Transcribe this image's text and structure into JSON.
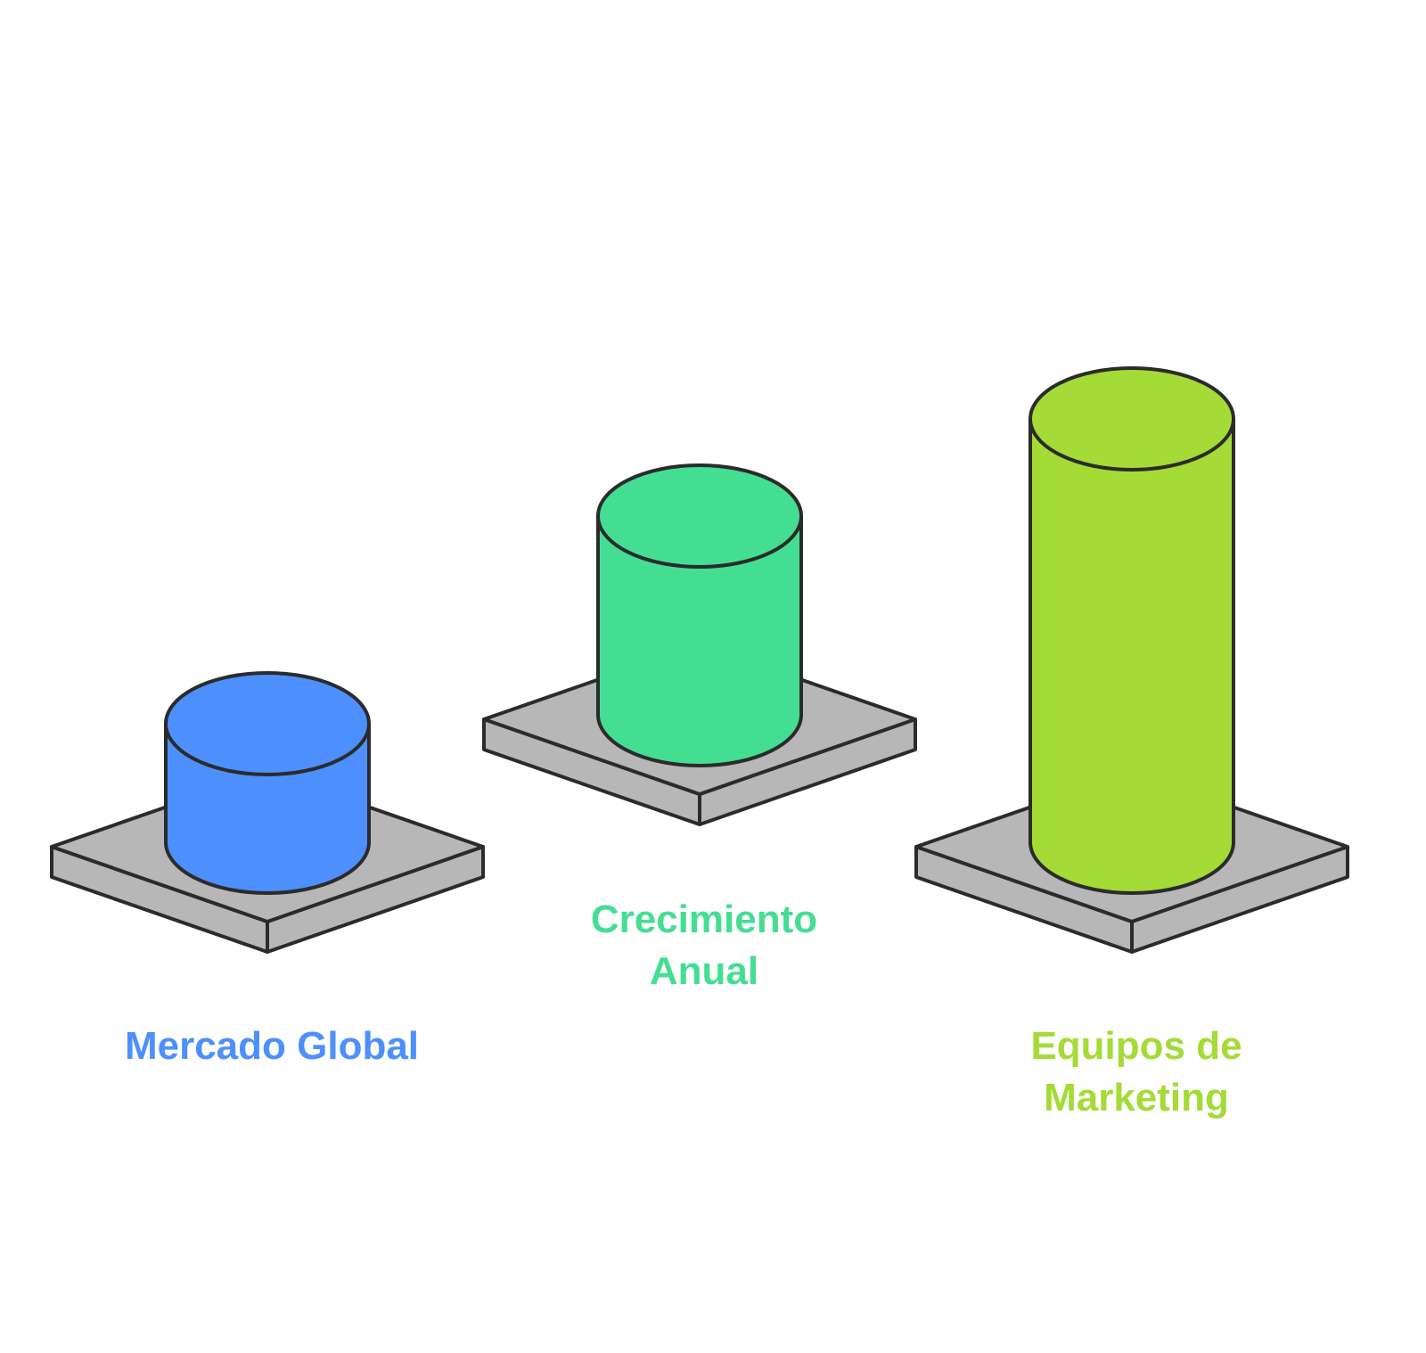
{
  "items": [
    {
      "label_lines": [
        "Mercado Global"
      ],
      "color": "#4d8ffd",
      "label_color": "#4d8ffd"
    },
    {
      "label_lines": [
        "Crecimiento",
        "Anual"
      ],
      "color": "#44de93",
      "label_color": "#44de93"
    },
    {
      "label_lines": [
        "Equipos de",
        "Marketing"
      ],
      "color": "#a4db37",
      "label_color": "#a4db37"
    }
  ],
  "platform_color": "#b7b7b7",
  "outline_color": "#2b2b2b"
}
